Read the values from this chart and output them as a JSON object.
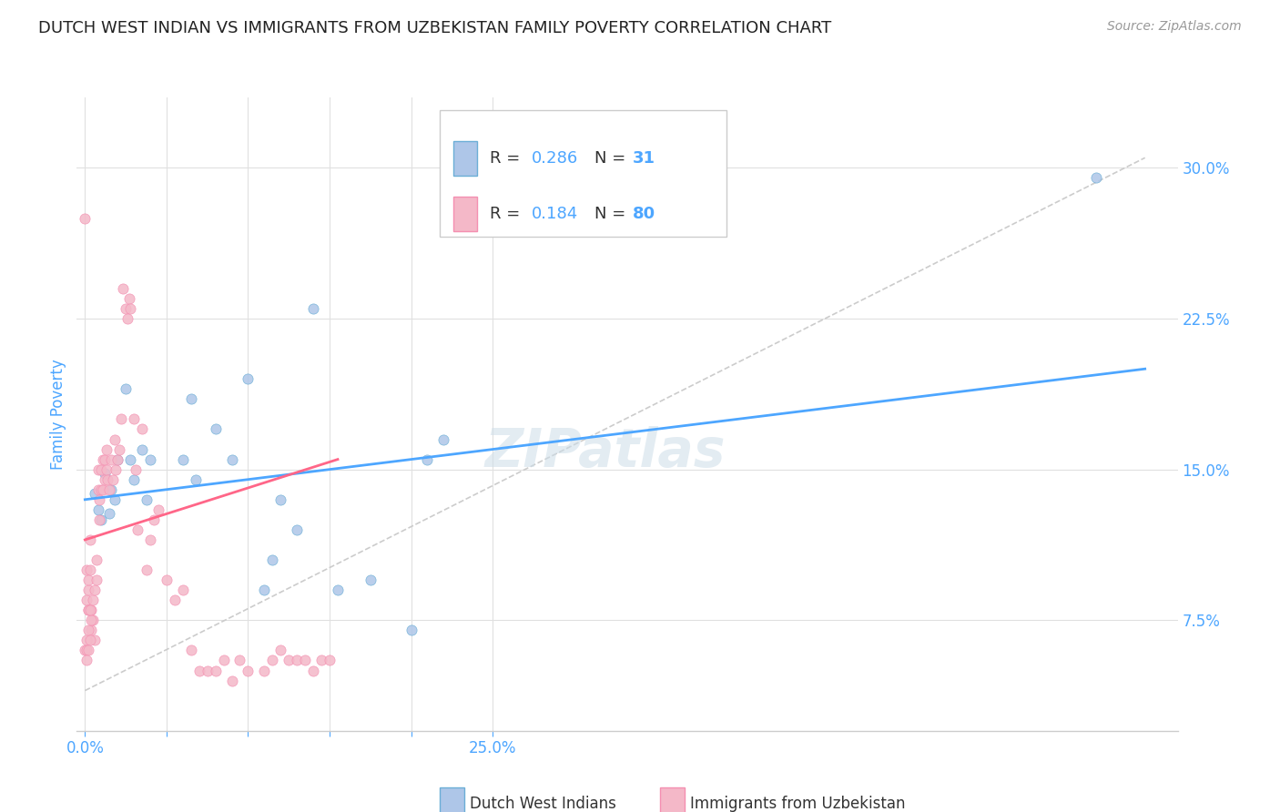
{
  "title": "DUTCH WEST INDIAN VS IMMIGRANTS FROM UZBEKISTAN FAMILY POVERTY CORRELATION CHART",
  "source": "Source: ZipAtlas.com",
  "ylabel": "Family Poverty",
  "y_ticks": [
    0.075,
    0.15,
    0.225,
    0.3
  ],
  "y_tick_labels": [
    "7.5%",
    "15.0%",
    "22.5%",
    "30.0%"
  ],
  "x_ticks": [
    0.0,
    0.05,
    0.1,
    0.15,
    0.2,
    0.25
  ],
  "x_tick_labels": [
    "0.0%",
    "",
    "",
    "",
    "",
    "25.0%"
  ],
  "watermark": "ZIPatlas",
  "blue_scatter_x": [
    0.006,
    0.008,
    0.01,
    0.012,
    0.015,
    0.016,
    0.018,
    0.02,
    0.025,
    0.028,
    0.03,
    0.035,
    0.038,
    0.04,
    0.06,
    0.065,
    0.068,
    0.08,
    0.09,
    0.1,
    0.11,
    0.115,
    0.12,
    0.13,
    0.14,
    0.155,
    0.175,
    0.2,
    0.21,
    0.22,
    0.62
  ],
  "blue_scatter_y": [
    0.138,
    0.13,
    0.125,
    0.148,
    0.128,
    0.14,
    0.135,
    0.155,
    0.19,
    0.155,
    0.145,
    0.16,
    0.135,
    0.155,
    0.155,
    0.185,
    0.145,
    0.17,
    0.155,
    0.195,
    0.09,
    0.105,
    0.135,
    0.12,
    0.23,
    0.09,
    0.095,
    0.07,
    0.155,
    0.165,
    0.295
  ],
  "pink_scatter_x": [
    0.0,
    0.001,
    0.001,
    0.002,
    0.002,
    0.002,
    0.003,
    0.003,
    0.004,
    0.004,
    0.005,
    0.005,
    0.006,
    0.006,
    0.007,
    0.007,
    0.008,
    0.008,
    0.009,
    0.009,
    0.01,
    0.01,
    0.011,
    0.011,
    0.012,
    0.012,
    0.013,
    0.013,
    0.014,
    0.015,
    0.016,
    0.017,
    0.018,
    0.019,
    0.02,
    0.021,
    0.022,
    0.023,
    0.025,
    0.026,
    0.027,
    0.028,
    0.03,
    0.031,
    0.032,
    0.035,
    0.038,
    0.04,
    0.042,
    0.045,
    0.05,
    0.055,
    0.06,
    0.065,
    0.07,
    0.075,
    0.08,
    0.085,
    0.09,
    0.095,
    0.1,
    0.11,
    0.115,
    0.12,
    0.125,
    0.13,
    0.135,
    0.14,
    0.145,
    0.15,
    0.0,
    0.001,
    0.002,
    0.003,
    0.004,
    0.002,
    0.003,
    0.001,
    0.002,
    0.001
  ],
  "pink_scatter_y": [
    0.275,
    0.085,
    0.1,
    0.08,
    0.09,
    0.095,
    0.1,
    0.115,
    0.07,
    0.08,
    0.075,
    0.085,
    0.09,
    0.065,
    0.095,
    0.105,
    0.14,
    0.15,
    0.135,
    0.125,
    0.14,
    0.15,
    0.155,
    0.14,
    0.145,
    0.155,
    0.16,
    0.15,
    0.145,
    0.14,
    0.155,
    0.145,
    0.165,
    0.15,
    0.155,
    0.16,
    0.175,
    0.24,
    0.23,
    0.225,
    0.235,
    0.23,
    0.175,
    0.15,
    0.12,
    0.17,
    0.1,
    0.115,
    0.125,
    0.13,
    0.095,
    0.085,
    0.09,
    0.06,
    0.05,
    0.05,
    0.05,
    0.055,
    0.045,
    0.055,
    0.05,
    0.05,
    0.055,
    0.06,
    0.055,
    0.055,
    0.055,
    0.05,
    0.055,
    0.055,
    0.06,
    0.065,
    0.07,
    0.065,
    0.075,
    0.08,
    0.08,
    0.06,
    0.06,
    0.055
  ],
  "blue_line_x": [
    0.0,
    0.65
  ],
  "blue_line_y": [
    0.135,
    0.2
  ],
  "pink_line_x": [
    0.0,
    0.155
  ],
  "pink_line_y": [
    0.115,
    0.155
  ],
  "grey_line_x": [
    0.0,
    0.65
  ],
  "grey_line_y": [
    0.04,
    0.305
  ],
  "scatter_size": 65,
  "scatter_alpha": 0.85,
  "scatter_edge_blue": "#6baed6",
  "scatter_edge_pink": "#f48fb1",
  "dot_color_blue": "#aec6e8",
  "dot_color_pink": "#f4b8c8",
  "blue_line_color": "#4da6ff",
  "pink_line_color": "#ff6688",
  "grey_line_color": "#cccccc",
  "background_color": "#ffffff",
  "title_fontsize": 13,
  "axis_color": "#4da6ff",
  "grid_color": "#e0e0e0",
  "legend_R_label": "R = ",
  "legend_N_label": "N = ",
  "legend_blue_R": "0.286",
  "legend_blue_N": "31",
  "legend_pink_R": "0.184",
  "legend_pink_N": "80",
  "legend_label_blue": "Dutch West Indians",
  "legend_label_pink": "Immigrants from Uzbekistan"
}
